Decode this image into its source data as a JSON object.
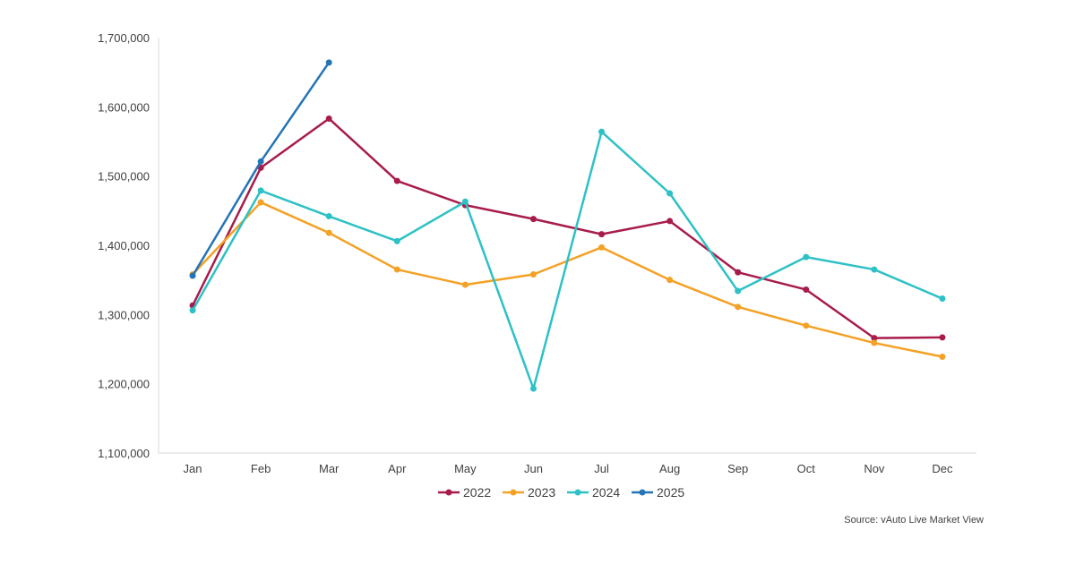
{
  "chart_data": {
    "type": "line",
    "categories": [
      "Jan",
      "Feb",
      "Mar",
      "Apr",
      "May",
      "Jun",
      "Jul",
      "Aug",
      "Sep",
      "Oct",
      "Nov",
      "Dec"
    ],
    "ylim": [
      1100000,
      1700000
    ],
    "yticks": [
      1100000,
      1200000,
      1300000,
      1400000,
      1500000,
      1600000,
      1700000
    ],
    "ytick_labels": [
      "1,100,000",
      "1,200,000",
      "1,300,000",
      "1,400,000",
      "1,500,000",
      "1,600,000",
      "1,700,000"
    ],
    "grid": false,
    "legend": "bottom",
    "series": [
      {
        "name": "2022",
        "color": "#A81C4B",
        "values": [
          1313000,
          1512000,
          1583000,
          1493000,
          1458000,
          1438000,
          1416000,
          1435000,
          1361000,
          1336000,
          1266000,
          1267000
        ]
      },
      {
        "name": "2023",
        "color": "#F4A125",
        "values": [
          1358000,
          1462000,
          1418000,
          1365000,
          1343000,
          1358000,
          1397000,
          1350000,
          1311000,
          1284000,
          1259000,
          1239000
        ]
      },
      {
        "name": "2024",
        "color": "#2DC1C6",
        "values": [
          1306000,
          1479000,
          1442000,
          1406000,
          1463000,
          1193000,
          1564000,
          1475000,
          1334000,
          1383000,
          1365000,
          1323000
        ]
      },
      {
        "name": "2025",
        "color": "#2474B6",
        "values": [
          1356000,
          1521000,
          1664000,
          null,
          null,
          null,
          null,
          null,
          null,
          null,
          null,
          null
        ]
      }
    ]
  },
  "source_text": "Source: vAuto Live Market View"
}
